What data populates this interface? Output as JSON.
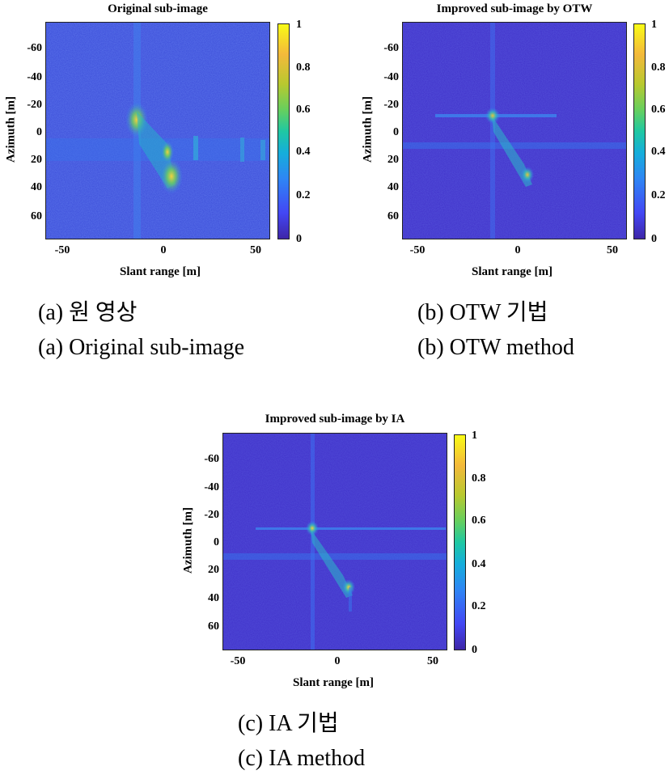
{
  "panels": [
    {
      "title": "Original sub-image",
      "xlabel": "Slant range [m]",
      "ylabel": "Azimuth [m]",
      "yticks": [
        "-60",
        "-40",
        "-20",
        "0",
        "20",
        "40",
        "60"
      ],
      "xticks": [
        "-50",
        "0",
        "50"
      ],
      "cticks": [
        "1",
        "0.8",
        "0.6",
        "0.4",
        "0.2",
        "0"
      ],
      "caption_ko": "(a) 원 영상",
      "caption_en": "(a) Original sub-image"
    },
    {
      "title": "Improved sub-image by OTW",
      "xlabel": "Slant range [m]",
      "ylabel": "Azimuth [m]",
      "yticks": [
        "-60",
        "-40",
        "-20",
        "0",
        "20",
        "40",
        "60"
      ],
      "xticks": [
        "-50",
        "0",
        "50"
      ],
      "cticks": [
        "1",
        "0.8",
        "0.6",
        "0.4",
        "0.2",
        "0"
      ],
      "caption_ko": "(b) OTW 기법",
      "caption_en": "(b) OTW method"
    },
    {
      "title": "Improved sub-image by IA",
      "xlabel": "Slant range [m]",
      "ylabel": "Azimuth [m]",
      "yticks": [
        "-60",
        "-40",
        "-20",
        "0",
        "20",
        "40",
        "60"
      ],
      "xticks": [
        "-50",
        "0",
        "50"
      ],
      "cticks": [
        "1",
        "0.8",
        "0.6",
        "0.4",
        "0.2",
        "0"
      ],
      "caption_ko": "(c) IA 기법",
      "caption_en": "(c) IA method"
    }
  ],
  "colors": {
    "background_low": "#3e26a8",
    "background_mid": "#4347f4",
    "highlight": "#f9fb15"
  }
}
